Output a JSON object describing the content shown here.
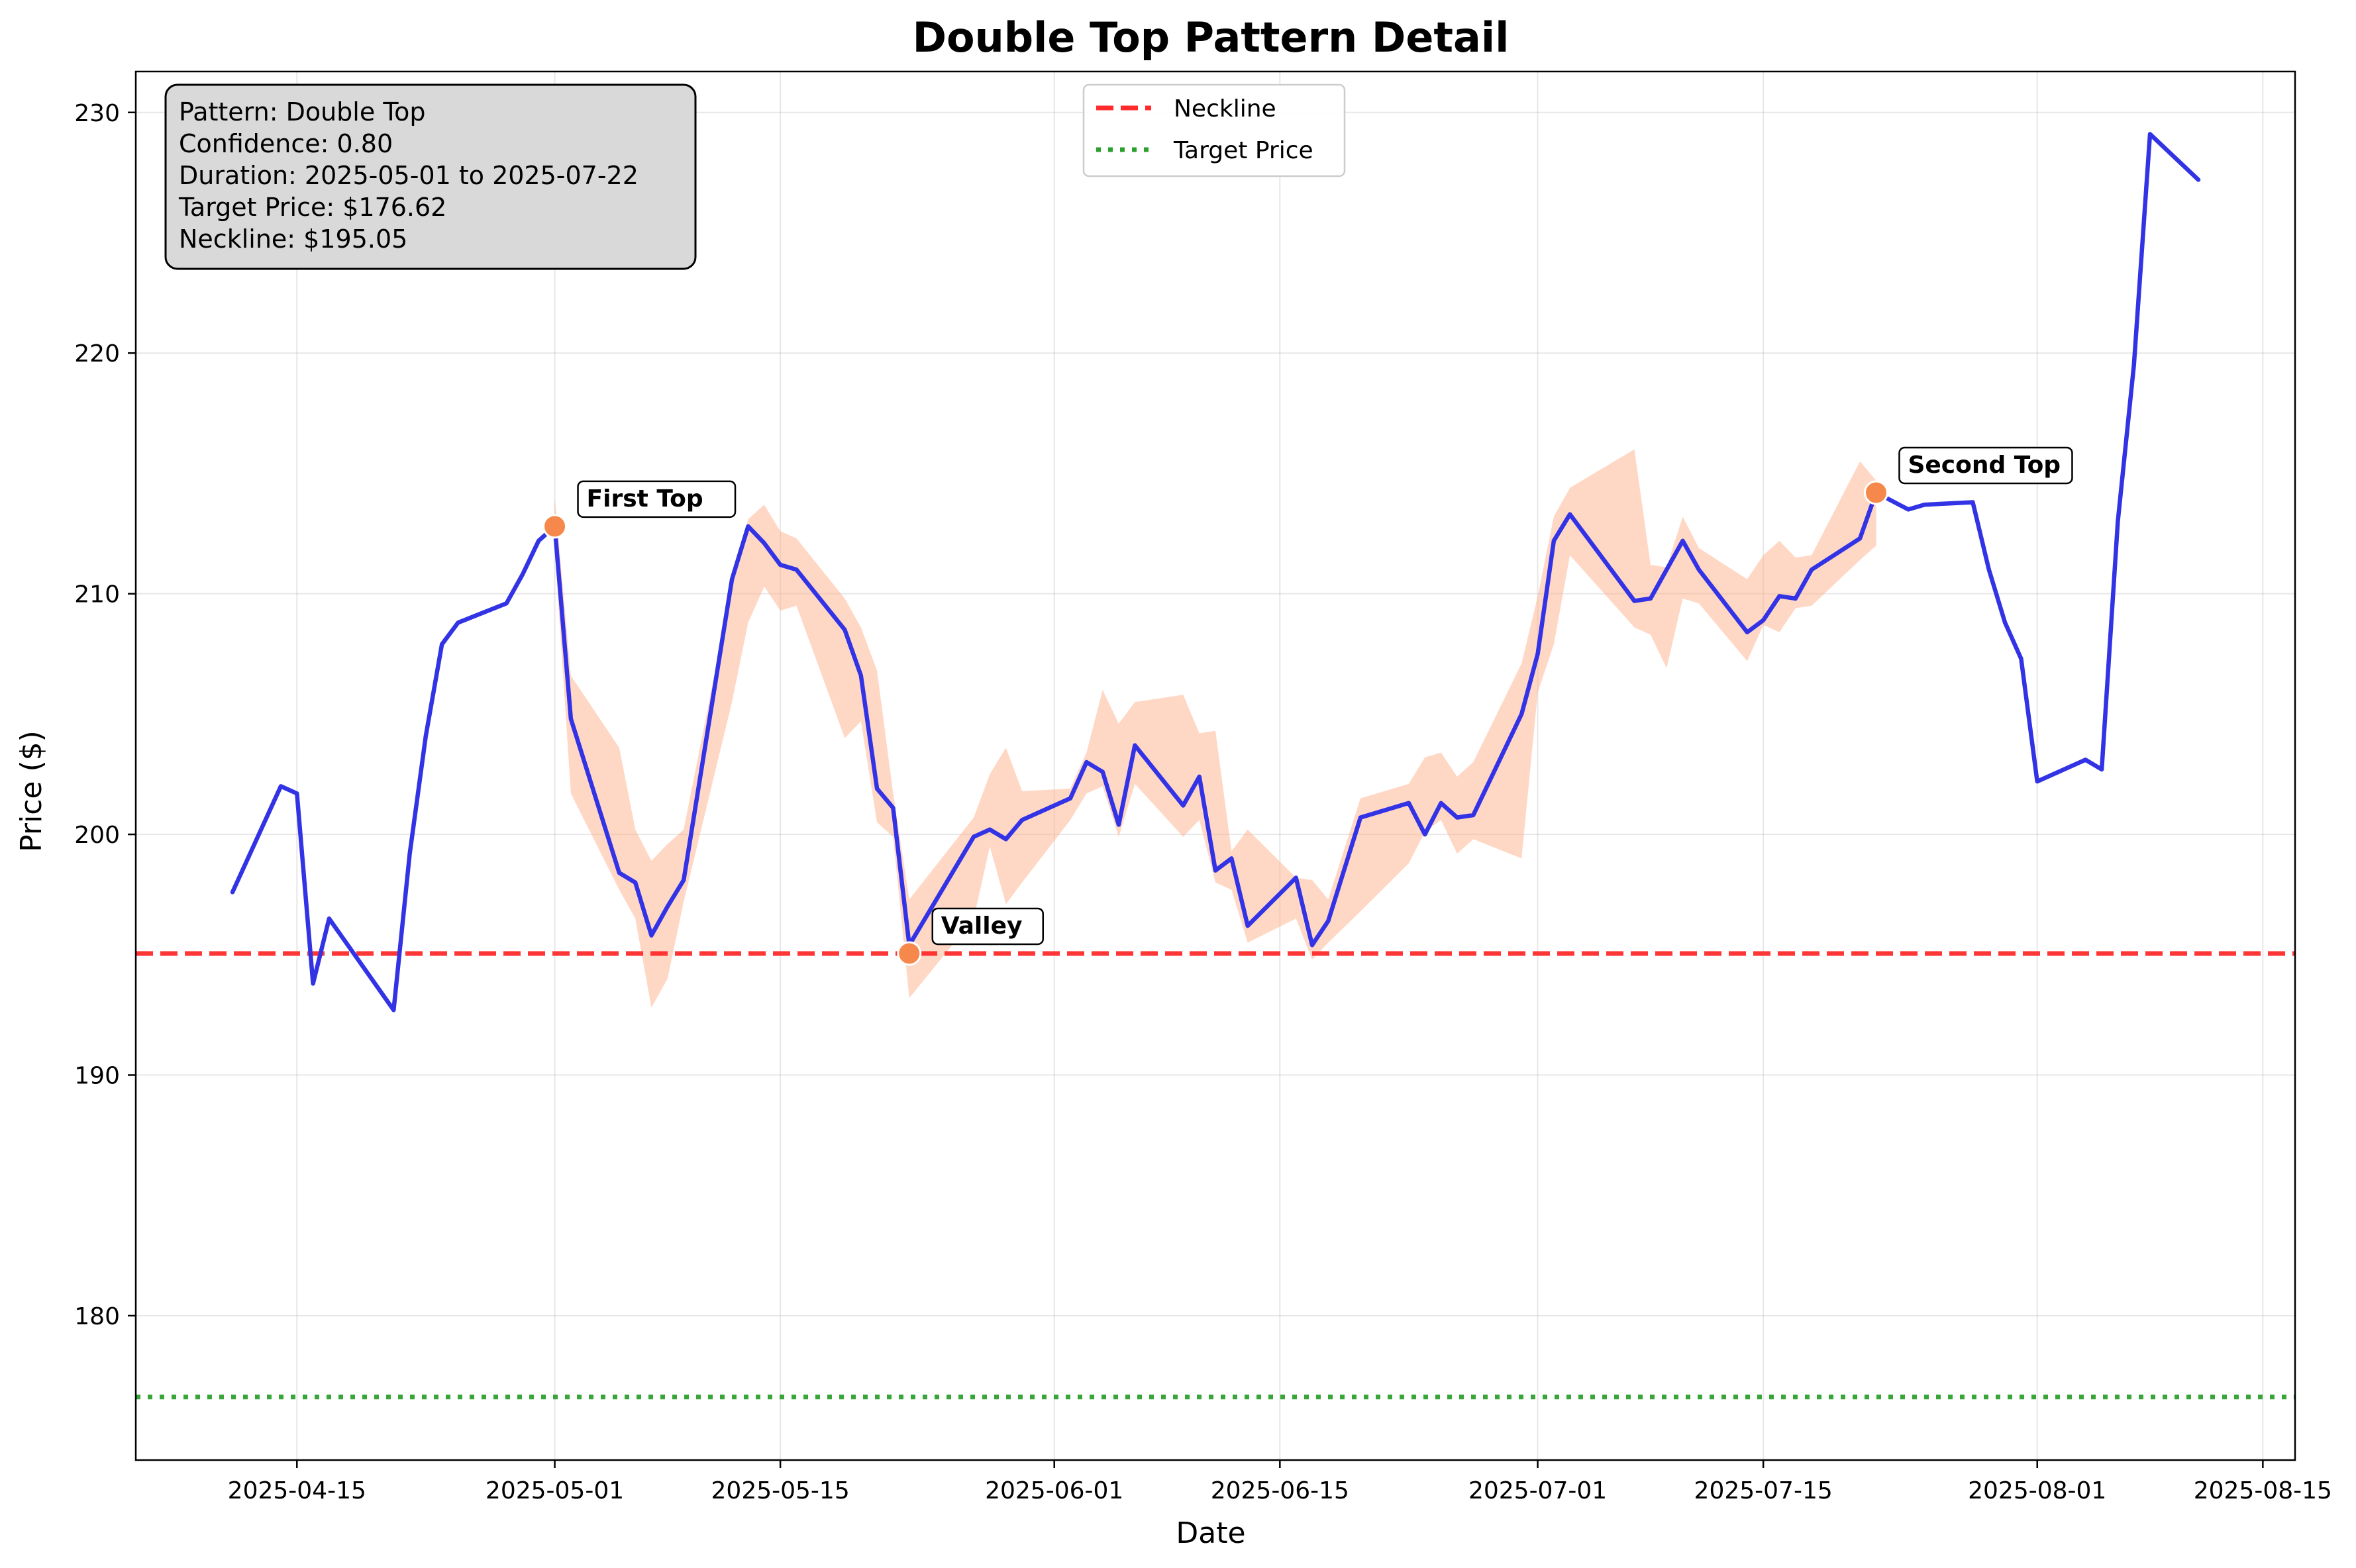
{
  "chart_data": {
    "type": "line",
    "title": "Double Top Pattern Detail",
    "xlabel": "Date",
    "ylabel": "Price ($)",
    "xlim": [
      "2025-04-05",
      "2025-08-17"
    ],
    "ylim": [
      174,
      231.7
    ],
    "x_ticks": [
      "2025-04-15",
      "2025-05-01",
      "2025-05-15",
      "2025-06-01",
      "2025-06-15",
      "2025-07-01",
      "2025-07-15",
      "2025-08-01",
      "2025-08-15"
    ],
    "y_ticks": [
      180,
      190,
      200,
      210,
      220,
      230
    ],
    "grid": true,
    "series": [
      {
        "name": "",
        "color": "#3333e6",
        "points": [
          [
            "2025-04-11",
            197.6
          ],
          [
            "2025-04-14",
            202.0
          ],
          [
            "2025-04-15",
            201.7
          ],
          [
            "2025-04-16",
            193.8
          ],
          [
            "2025-04-17",
            196.5
          ],
          [
            "2025-04-21",
            192.7
          ],
          [
            "2025-04-22",
            199.2
          ],
          [
            "2025-04-23",
            204.1
          ],
          [
            "2025-04-24",
            207.9
          ],
          [
            "2025-04-25",
            208.8
          ],
          [
            "2025-04-28",
            209.6
          ],
          [
            "2025-04-29",
            210.8
          ],
          [
            "2025-04-30",
            212.2
          ],
          [
            "2025-05-01",
            212.8
          ],
          [
            "2025-05-02",
            204.8
          ],
          [
            "2025-05-05",
            198.4
          ],
          [
            "2025-05-06",
            198.0
          ],
          [
            "2025-05-07",
            195.8
          ],
          [
            "2025-05-08",
            197.0
          ],
          [
            "2025-05-09",
            198.1
          ],
          [
            "2025-05-12",
            210.6
          ],
          [
            "2025-05-13",
            212.8
          ],
          [
            "2025-05-14",
            212.1
          ],
          [
            "2025-05-15",
            211.2
          ],
          [
            "2025-05-16",
            211.0
          ],
          [
            "2025-05-19",
            208.5
          ],
          [
            "2025-05-20",
            206.6
          ],
          [
            "2025-05-21",
            201.9
          ],
          [
            "2025-05-22",
            201.1
          ],
          [
            "2025-05-23",
            195.4
          ],
          [
            "2025-05-27",
            199.9
          ],
          [
            "2025-05-28",
            200.2
          ],
          [
            "2025-05-29",
            199.8
          ],
          [
            "2025-05-30",
            200.6
          ],
          [
            "2025-06-02",
            201.5
          ],
          [
            "2025-06-03",
            203.0
          ],
          [
            "2025-06-04",
            202.6
          ],
          [
            "2025-06-05",
            200.4
          ],
          [
            "2025-06-06",
            203.7
          ],
          [
            "2025-06-09",
            201.2
          ],
          [
            "2025-06-10",
            202.4
          ],
          [
            "2025-06-11",
            198.5
          ],
          [
            "2025-06-12",
            199.0
          ],
          [
            "2025-06-13",
            196.2
          ],
          [
            "2025-06-16",
            198.2
          ],
          [
            "2025-06-17",
            195.4
          ],
          [
            "2025-06-18",
            196.4
          ],
          [
            "2025-06-20",
            200.7
          ],
          [
            "2025-06-23",
            201.3
          ],
          [
            "2025-06-24",
            200.0
          ],
          [
            "2025-06-25",
            201.3
          ],
          [
            "2025-06-26",
            200.7
          ],
          [
            "2025-06-27",
            200.8
          ],
          [
            "2025-06-30",
            205.0
          ],
          [
            "2025-07-01",
            207.5
          ],
          [
            "2025-07-02",
            212.2
          ],
          [
            "2025-07-03",
            213.3
          ],
          [
            "2025-07-07",
            209.7
          ],
          [
            "2025-07-08",
            209.8
          ],
          [
            "2025-07-10",
            212.2
          ],
          [
            "2025-07-11",
            211.0
          ],
          [
            "2025-07-14",
            208.4
          ],
          [
            "2025-07-15",
            208.9
          ],
          [
            "2025-07-16",
            209.9
          ],
          [
            "2025-07-17",
            209.8
          ],
          [
            "2025-07-18",
            211.0
          ],
          [
            "2025-07-21",
            212.3
          ],
          [
            "2025-07-22",
            214.2
          ],
          [
            "2025-07-24",
            213.5
          ],
          [
            "2025-07-25",
            213.7
          ],
          [
            "2025-07-28",
            213.8
          ],
          [
            "2025-07-29",
            211.0
          ],
          [
            "2025-07-30",
            208.8
          ],
          [
            "2025-07-31",
            207.3
          ],
          [
            "2025-08-01",
            202.2
          ],
          [
            "2025-08-04",
            203.1
          ],
          [
            "2025-08-05",
            202.7
          ],
          [
            "2025-08-06",
            213.0
          ],
          [
            "2025-08-07",
            219.5
          ],
          [
            "2025-08-08",
            229.1
          ],
          [
            "2025-08-11",
            227.2
          ]
        ]
      }
    ],
    "band": {
      "color": "#ffb08c",
      "upper": [
        [
          "2025-05-01",
          214.0
        ],
        [
          "2025-05-02",
          206.6
        ],
        [
          "2025-05-05",
          203.6
        ],
        [
          "2025-05-06",
          200.2
        ],
        [
          "2025-05-07",
          198.9
        ],
        [
          "2025-05-08",
          199.6
        ],
        [
          "2025-05-09",
          200.2
        ],
        [
          "2025-05-12",
          210.3
        ],
        [
          "2025-05-13",
          213.1
        ],
        [
          "2025-05-14",
          213.7
        ],
        [
          "2025-05-15",
          212.6
        ],
        [
          "2025-05-16",
          212.3
        ],
        [
          "2025-05-19",
          209.8
        ],
        [
          "2025-05-20",
          208.6
        ],
        [
          "2025-05-21",
          206.8
        ],
        [
          "2025-05-22",
          201.7
        ],
        [
          "2025-05-23",
          197.3
        ],
        [
          "2025-05-27",
          200.7
        ],
        [
          "2025-05-28",
          202.5
        ],
        [
          "2025-05-29",
          203.6
        ],
        [
          "2025-05-30",
          201.8
        ],
        [
          "2025-06-02",
          201.9
        ],
        [
          "2025-06-03",
          203.4
        ],
        [
          "2025-06-04",
          206.0
        ],
        [
          "2025-06-05",
          204.6
        ],
        [
          "2025-06-06",
          205.5
        ],
        [
          "2025-06-09",
          205.8
        ],
        [
          "2025-06-10",
          204.2
        ],
        [
          "2025-06-11",
          204.3
        ],
        [
          "2025-06-12",
          199.3
        ],
        [
          "2025-06-13",
          200.2
        ],
        [
          "2025-06-16",
          198.2
        ],
        [
          "2025-06-17",
          198.1
        ],
        [
          "2025-06-18",
          197.3
        ],
        [
          "2025-06-20",
          201.5
        ],
        [
          "2025-06-23",
          202.1
        ],
        [
          "2025-06-24",
          203.2
        ],
        [
          "2025-06-25",
          203.4
        ],
        [
          "2025-06-26",
          202.4
        ],
        [
          "2025-06-27",
          203.0
        ],
        [
          "2025-06-30",
          207.1
        ],
        [
          "2025-07-01",
          209.9
        ],
        [
          "2025-07-02",
          213.2
        ],
        [
          "2025-07-03",
          214.4
        ],
        [
          "2025-07-07",
          216.0
        ],
        [
          "2025-07-08",
          211.2
        ],
        [
          "2025-07-09",
          211.1
        ],
        [
          "2025-07-10",
          213.2
        ],
        [
          "2025-07-11",
          211.9
        ],
        [
          "2025-07-14",
          210.6
        ],
        [
          "2025-07-15",
          211.6
        ],
        [
          "2025-07-16",
          212.2
        ],
        [
          "2025-07-17",
          211.5
        ],
        [
          "2025-07-18",
          211.6
        ],
        [
          "2025-07-21",
          215.5
        ],
        [
          "2025-07-22",
          214.7
        ]
      ],
      "lower": [
        [
          "2025-05-01",
          211.9
        ],
        [
          "2025-05-02",
          201.7
        ],
        [
          "2025-05-05",
          197.7
        ],
        [
          "2025-05-06",
          196.5
        ],
        [
          "2025-05-07",
          192.8
        ],
        [
          "2025-05-08",
          194.0
        ],
        [
          "2025-05-09",
          197.2
        ],
        [
          "2025-05-12",
          205.5
        ],
        [
          "2025-05-13",
          208.8
        ],
        [
          "2025-05-14",
          210.3
        ],
        [
          "2025-05-15",
          209.3
        ],
        [
          "2025-05-16",
          209.5
        ],
        [
          "2025-05-19",
          204.0
        ],
        [
          "2025-05-20",
          204.7
        ],
        [
          "2025-05-21",
          200.5
        ],
        [
          "2025-05-22",
          199.9
        ],
        [
          "2025-05-23",
          193.2
        ],
        [
          "2025-05-27",
          196.5
        ],
        [
          "2025-05-28",
          199.5
        ],
        [
          "2025-05-29",
          197.1
        ],
        [
          "2025-05-30",
          198.0
        ],
        [
          "2025-06-02",
          200.6
        ],
        [
          "2025-06-03",
          201.7
        ],
        [
          "2025-06-04",
          202.0
        ],
        [
          "2025-06-05",
          199.9
        ],
        [
          "2025-06-06",
          202.1
        ],
        [
          "2025-06-09",
          199.9
        ],
        [
          "2025-06-10",
          200.6
        ],
        [
          "2025-06-11",
          198.0
        ],
        [
          "2025-06-12",
          197.7
        ],
        [
          "2025-06-13",
          195.5
        ],
        [
          "2025-06-16",
          196.5
        ],
        [
          "2025-06-17",
          194.8
        ],
        [
          "2025-06-18",
          195.5
        ],
        [
          "2025-06-20",
          196.8
        ],
        [
          "2025-06-23",
          198.8
        ],
        [
          "2025-06-24",
          200.1
        ],
        [
          "2025-06-25",
          200.6
        ],
        [
          "2025-06-26",
          199.2
        ],
        [
          "2025-06-27",
          199.8
        ],
        [
          "2025-06-30",
          199.0
        ],
        [
          "2025-07-01",
          205.9
        ],
        [
          "2025-07-02",
          207.9
        ],
        [
          "2025-07-03",
          211.6
        ],
        [
          "2025-07-07",
          208.6
        ],
        [
          "2025-07-08",
          208.3
        ],
        [
          "2025-07-09",
          206.9
        ],
        [
          "2025-07-10",
          209.8
        ],
        [
          "2025-07-11",
          209.6
        ],
        [
          "2025-07-14",
          207.2
        ],
        [
          "2025-07-15",
          208.7
        ],
        [
          "2025-07-16",
          208.4
        ],
        [
          "2025-07-17",
          209.4
        ],
        [
          "2025-07-18",
          209.5
        ],
        [
          "2025-07-21",
          211.4
        ],
        [
          "2025-07-22",
          212.0
        ]
      ]
    },
    "reference_lines": [
      {
        "name": "Neckline",
        "value": 195.05,
        "color": "#ff2b2b",
        "style": "dashed"
      },
      {
        "name": "Target Price",
        "value": 176.62,
        "color": "#2ca02c",
        "style": "dotted"
      }
    ],
    "markers": [
      {
        "label": "First Top",
        "date": "2025-05-01",
        "value": 212.8,
        "color": "#f5884a"
      },
      {
        "label": "Valley",
        "date": "2025-05-23",
        "value": 195.05,
        "color": "#f5884a"
      },
      {
        "label": "Second Top",
        "date": "2025-07-22",
        "value": 214.2,
        "color": "#f5884a"
      }
    ],
    "legend_position": "top-center",
    "info_box": {
      "position": "top-left",
      "lines": [
        "Pattern: Double Top",
        "Confidence: 0.80",
        "Duration: 2025-05-01 to 2025-07-22",
        "Target Price: $176.62",
        "Neckline: $195.05"
      ]
    }
  }
}
